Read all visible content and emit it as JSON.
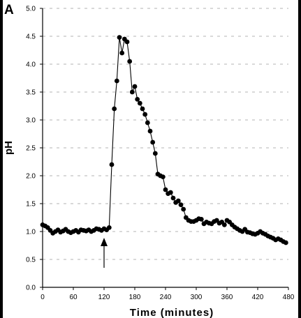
{
  "chart_data": {
    "type": "line",
    "panel_label": "A",
    "title": "",
    "xlabel": "Time (minutes)",
    "ylabel": "pH",
    "xlim": [
      0,
      480
    ],
    "ylim": [
      0,
      5.0
    ],
    "x_ticks": [
      0,
      60,
      120,
      180,
      240,
      300,
      360,
      420,
      480
    ],
    "y_ticks": [
      0.0,
      0.5,
      1.0,
      1.5,
      2.0,
      2.5,
      3.0,
      3.5,
      4.0,
      4.5,
      5.0
    ],
    "y_tick_labels": [
      "0.0",
      "0.5",
      "1.0",
      "1.5",
      "2.0",
      "2.5",
      "3.0",
      "3.5",
      "4.0",
      "4.5",
      "5.0"
    ],
    "grid": "horizontal dashed",
    "marker": "filled circle",
    "annotation": {
      "type": "arrow",
      "x": 120,
      "direction": "up"
    },
    "series": [
      {
        "x": [
          0,
          5,
          10,
          15,
          20,
          25,
          30,
          35,
          40,
          45,
          50,
          55,
          60,
          65,
          70,
          75,
          80,
          85,
          90,
          95,
          100,
          105,
          110,
          115,
          120,
          125,
          130,
          135,
          140,
          145,
          150,
          155,
          160,
          165,
          170,
          175,
          180,
          185,
          190,
          195,
          200,
          205,
          210,
          215,
          220,
          225,
          230,
          235,
          240,
          245,
          250,
          255,
          260,
          265,
          270,
          275,
          280,
          285,
          290,
          295,
          300,
          305,
          310,
          315,
          320,
          325,
          330,
          335,
          340,
          345,
          350,
          355,
          360,
          365,
          370,
          375,
          380,
          385,
          390,
          395,
          400,
          405,
          410,
          415,
          420,
          425,
          430,
          435,
          440,
          445,
          450,
          455,
          460,
          465,
          470,
          475
        ],
        "y": [
          1.12,
          1.1,
          1.07,
          1.02,
          0.97,
          1.0,
          1.03,
          0.99,
          1.01,
          1.04,
          1.0,
          0.98,
          1.0,
          1.02,
          0.99,
          1.03,
          1.02,
          1.01,
          1.03,
          1.0,
          1.02,
          1.05,
          1.04,
          1.02,
          1.05,
          1.03,
          1.07,
          2.2,
          3.2,
          3.7,
          4.48,
          4.2,
          4.45,
          4.4,
          4.05,
          3.5,
          3.6,
          3.37,
          3.3,
          3.2,
          3.1,
          2.95,
          2.8,
          2.6,
          2.4,
          2.03,
          2.0,
          1.98,
          1.75,
          1.68,
          1.7,
          1.6,
          1.52,
          1.55,
          1.48,
          1.4,
          1.25,
          1.2,
          1.18,
          1.18,
          1.2,
          1.23,
          1.22,
          1.14,
          1.17,
          1.15,
          1.14,
          1.18,
          1.2,
          1.15,
          1.17,
          1.12,
          1.2,
          1.17,
          1.12,
          1.08,
          1.05,
          1.02,
          1.0,
          1.04,
          0.99,
          0.98,
          0.96,
          0.95,
          0.97,
          1.0,
          0.97,
          0.95,
          0.92,
          0.9,
          0.88,
          0.85,
          0.87,
          0.85,
          0.82,
          0.8
        ]
      }
    ]
  }
}
